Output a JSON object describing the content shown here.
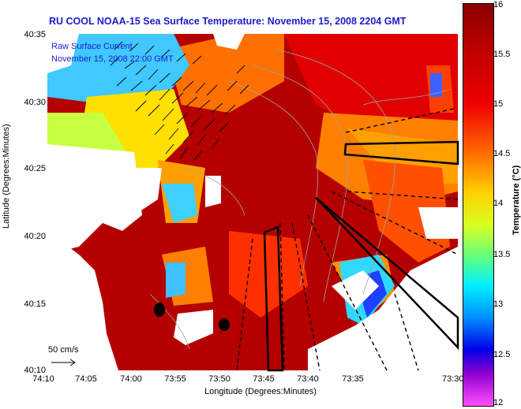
{
  "title": "RU COOL  NOAA-15  Sea Surface Temperature:  November 15, 2008 2204 GMT",
  "legend": {
    "current_label": "Raw Surface Current",
    "current_date": "November 15, 2008 22:00 GMT",
    "scale_label": "50 cm/s"
  },
  "axes": {
    "ylabel": "Latitude (Degrees:Minutes)",
    "xlabel": "Longitude (Degrees:Minutes)",
    "yticks": [
      "40:35",
      "40:30",
      "40:25",
      "40:20",
      "40:15",
      "40:10"
    ],
    "xticks": [
      "74:10",
      "74:05",
      "74:00",
      "73:55",
      "73:50",
      "73:45",
      "73:40",
      "73:35",
      "73:30"
    ]
  },
  "colorbar": {
    "label": "Temperature (°C)",
    "ticks": [
      "16",
      "15.5",
      "15",
      "14.5",
      "14",
      "13.5",
      "13",
      "12.5",
      "12"
    ],
    "range": [
      12,
      16
    ]
  },
  "colors": {
    "title": "#1c1ccc",
    "warm_water": "#b40000",
    "land": "#ffffff",
    "current_vectors": "#000000"
  }
}
